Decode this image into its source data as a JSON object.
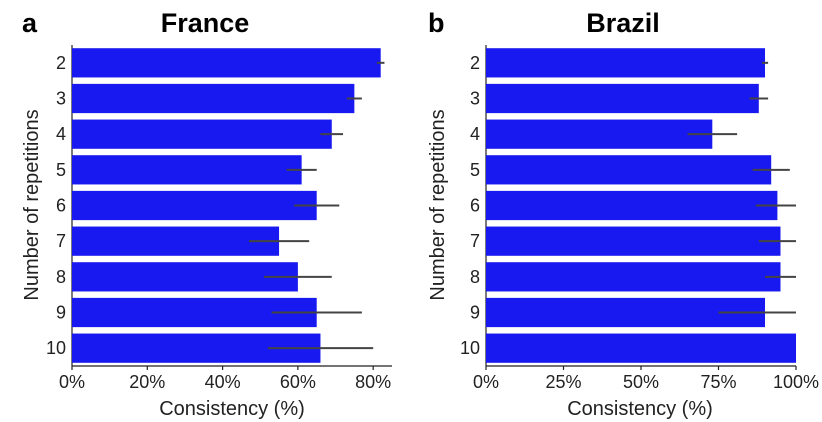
{
  "chart_data": [
    {
      "type": "bar",
      "orientation": "horizontal",
      "panel_label": "a",
      "title": "France",
      "xlabel": "Consistency (%)",
      "ylabel": "Number of repetitions",
      "categories": [
        "2",
        "3",
        "4",
        "5",
        "6",
        "7",
        "8",
        "9",
        "10"
      ],
      "values": [
        82,
        75,
        69,
        61,
        65,
        55,
        60,
        65,
        66
      ],
      "error": [
        1,
        2,
        3,
        4,
        6,
        8,
        9,
        12,
        14
      ],
      "xlim": [
        0,
        85
      ],
      "xticks": [
        0,
        20,
        40,
        60,
        80
      ],
      "xtick_labels": [
        "0%",
        "20%",
        "40%",
        "60%",
        "80%"
      ],
      "bar_color": "#1818f0",
      "grid": false
    },
    {
      "type": "bar",
      "orientation": "horizontal",
      "panel_label": "b",
      "title": "Brazil",
      "xlabel": "Consistency (%)",
      "ylabel": "Number of repetitions",
      "categories": [
        "2",
        "3",
        "4",
        "5",
        "6",
        "7",
        "8",
        "9",
        "10"
      ],
      "values": [
        90,
        88,
        73,
        92,
        94,
        95,
        95,
        90,
        100
      ],
      "error": [
        1,
        3,
        8,
        6,
        7,
        7,
        5,
        15,
        0
      ],
      "xlim": [
        0,
        100
      ],
      "xticks": [
        0,
        25,
        50,
        75,
        100
      ],
      "xtick_labels": [
        "0%",
        "25%",
        "50%",
        "75%",
        "100%"
      ],
      "bar_color": "#1818f0",
      "grid": false
    }
  ]
}
